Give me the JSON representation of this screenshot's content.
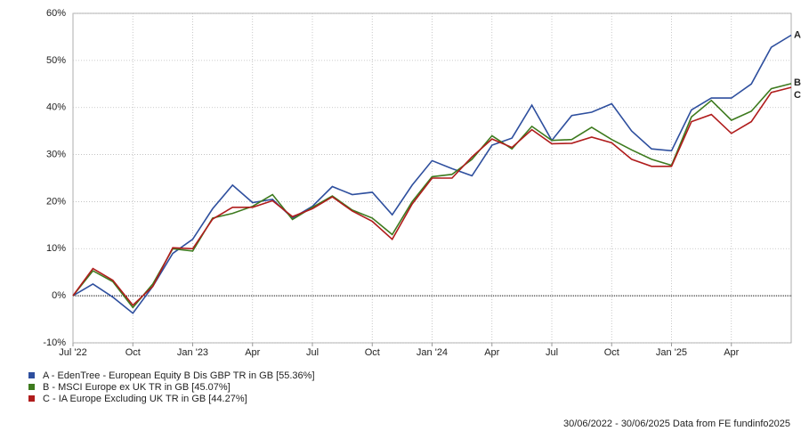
{
  "chart_data": {
    "type": "line",
    "categories": [
      "Jul '22",
      null,
      null,
      "Oct",
      null,
      null,
      "Jan '23",
      null,
      null,
      "Apr",
      null,
      null,
      "Jul",
      null,
      null,
      "Oct",
      null,
      null,
      "Jan '24",
      null,
      null,
      "Apr",
      null,
      null,
      "Jul",
      null,
      null,
      "Oct",
      null,
      null,
      "Jan '25",
      null,
      null,
      "Apr",
      null,
      null,
      null
    ],
    "series": [
      {
        "name": "A - EdenTree - European Equity B Dis GBP TR in GB [55.36%]",
        "end_label": "A",
        "color": "#2e4f9e",
        "values": [
          0,
          2.5,
          -0.3,
          -3.7,
          2,
          9,
          12,
          18.5,
          23.5,
          19.8,
          20.5,
          16.5,
          19,
          23.2,
          21.5,
          22,
          17.2,
          23.5,
          28.7,
          27,
          25.5,
          32,
          33.5,
          40.5,
          33,
          38.3,
          39,
          40.8,
          35,
          31.2,
          30.8,
          39.5,
          42,
          42,
          45,
          52.8,
          55.36
        ]
      },
      {
        "name": "B - MSCI Europe ex UK TR in GB [45.07%]",
        "end_label": "B",
        "color": "#3d7a1e",
        "values": [
          0,
          5.3,
          3,
          -2.5,
          2.5,
          10,
          9.5,
          16.5,
          17.5,
          19,
          21.5,
          16.2,
          18.8,
          21.2,
          18.2,
          16.5,
          13,
          20,
          25.3,
          25.8,
          29,
          34,
          31.2,
          36,
          33,
          33.2,
          35.8,
          33.2,
          31,
          29,
          27.7,
          38,
          41.5,
          37.3,
          39.2,
          44,
          45.07
        ]
      },
      {
        "name": "C - IA Europe Excluding UK TR in GB [44.27%]",
        "end_label": "C",
        "color": "#b01c1c",
        "values": [
          0,
          5.8,
          3.3,
          -2,
          2,
          10.2,
          10,
          16.3,
          18.8,
          18.8,
          20.2,
          16.8,
          18.5,
          21,
          18,
          15.8,
          12,
          19.5,
          25,
          25,
          29.5,
          33.3,
          31.5,
          35.3,
          32.3,
          32.4,
          33.7,
          32.5,
          29,
          27.5,
          27.5,
          37,
          38.5,
          34.5,
          37,
          43.2,
          44.27
        ]
      }
    ],
    "ylim": [
      -10,
      60
    ],
    "yticks": [
      {
        "value": -10,
        "label": "-10%"
      },
      {
        "value": 0,
        "label": "0%"
      },
      {
        "value": 10,
        "label": "10%"
      },
      {
        "value": 20,
        "label": "20%"
      },
      {
        "value": 30,
        "label": "30%"
      },
      {
        "value": 40,
        "label": "40%"
      },
      {
        "value": 50,
        "label": "50%"
      },
      {
        "value": 60,
        "label": "60%"
      }
    ],
    "grid": true,
    "footer": "30/06/2022 - 30/06/2025 Data from FE fundinfo2025"
  }
}
